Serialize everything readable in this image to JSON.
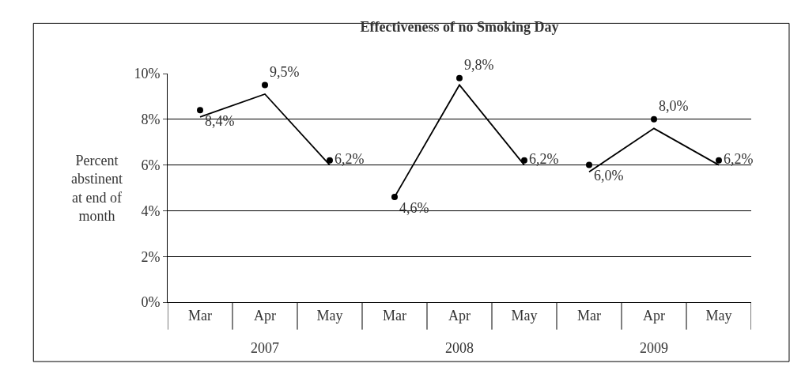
{
  "chart_data": {
    "type": "scatter",
    "title": "Effectiveness of no Smoking Day",
    "ylabel": "Percent\nabstinent\nat end of\nmonth",
    "categories": [
      "Mar",
      "Apr",
      "May",
      "Mar",
      "Apr",
      "May",
      "Mar",
      "Apr",
      "May"
    ],
    "annotations": [
      "2007",
      "2008",
      "2009"
    ],
    "series": [
      {
        "marker": "circle",
        "color": "#000000",
        "values": [
          8.4,
          9.5,
          6.2,
          4.6,
          9.8,
          6.2,
          6.0,
          8.0,
          6.2
        ],
        "value_labels": [
          "8,4%",
          "9,5%",
          "6,2%",
          "4,6%",
          "9,8%",
          "6,2%",
          "6,0%",
          "8,0%",
          "6,2%"
        ]
      },
      {
        "type": "line",
        "marker": "none",
        "color": "#000000",
        "values": [
          8.1,
          9.1,
          6.0,
          null,
          null,
          null,
          null,
          null,
          null
        ]
      },
      {
        "type": "line",
        "marker": "none",
        "color": "#000000",
        "values": [
          null,
          null,
          null,
          4.6,
          9.5,
          6.0,
          null,
          null,
          null
        ]
      },
      {
        "type": "line",
        "marker": "none",
        "color": "#000000",
        "values": [
          null,
          null,
          null,
          null,
          null,
          null,
          5.7,
          7.6,
          6.0
        ]
      }
    ],
    "ylim": [
      0,
      10
    ],
    "yticks": [
      {
        "value": 0,
        "label": "0%"
      },
      {
        "value": 2,
        "label": "2%"
      },
      {
        "value": 4,
        "label": "4%"
      },
      {
        "value": 6,
        "label": "6%"
      },
      {
        "value": 8,
        "label": "8%"
      },
      {
        "value": 10,
        "label": "10%"
      }
    ],
    "grid": "y"
  }
}
